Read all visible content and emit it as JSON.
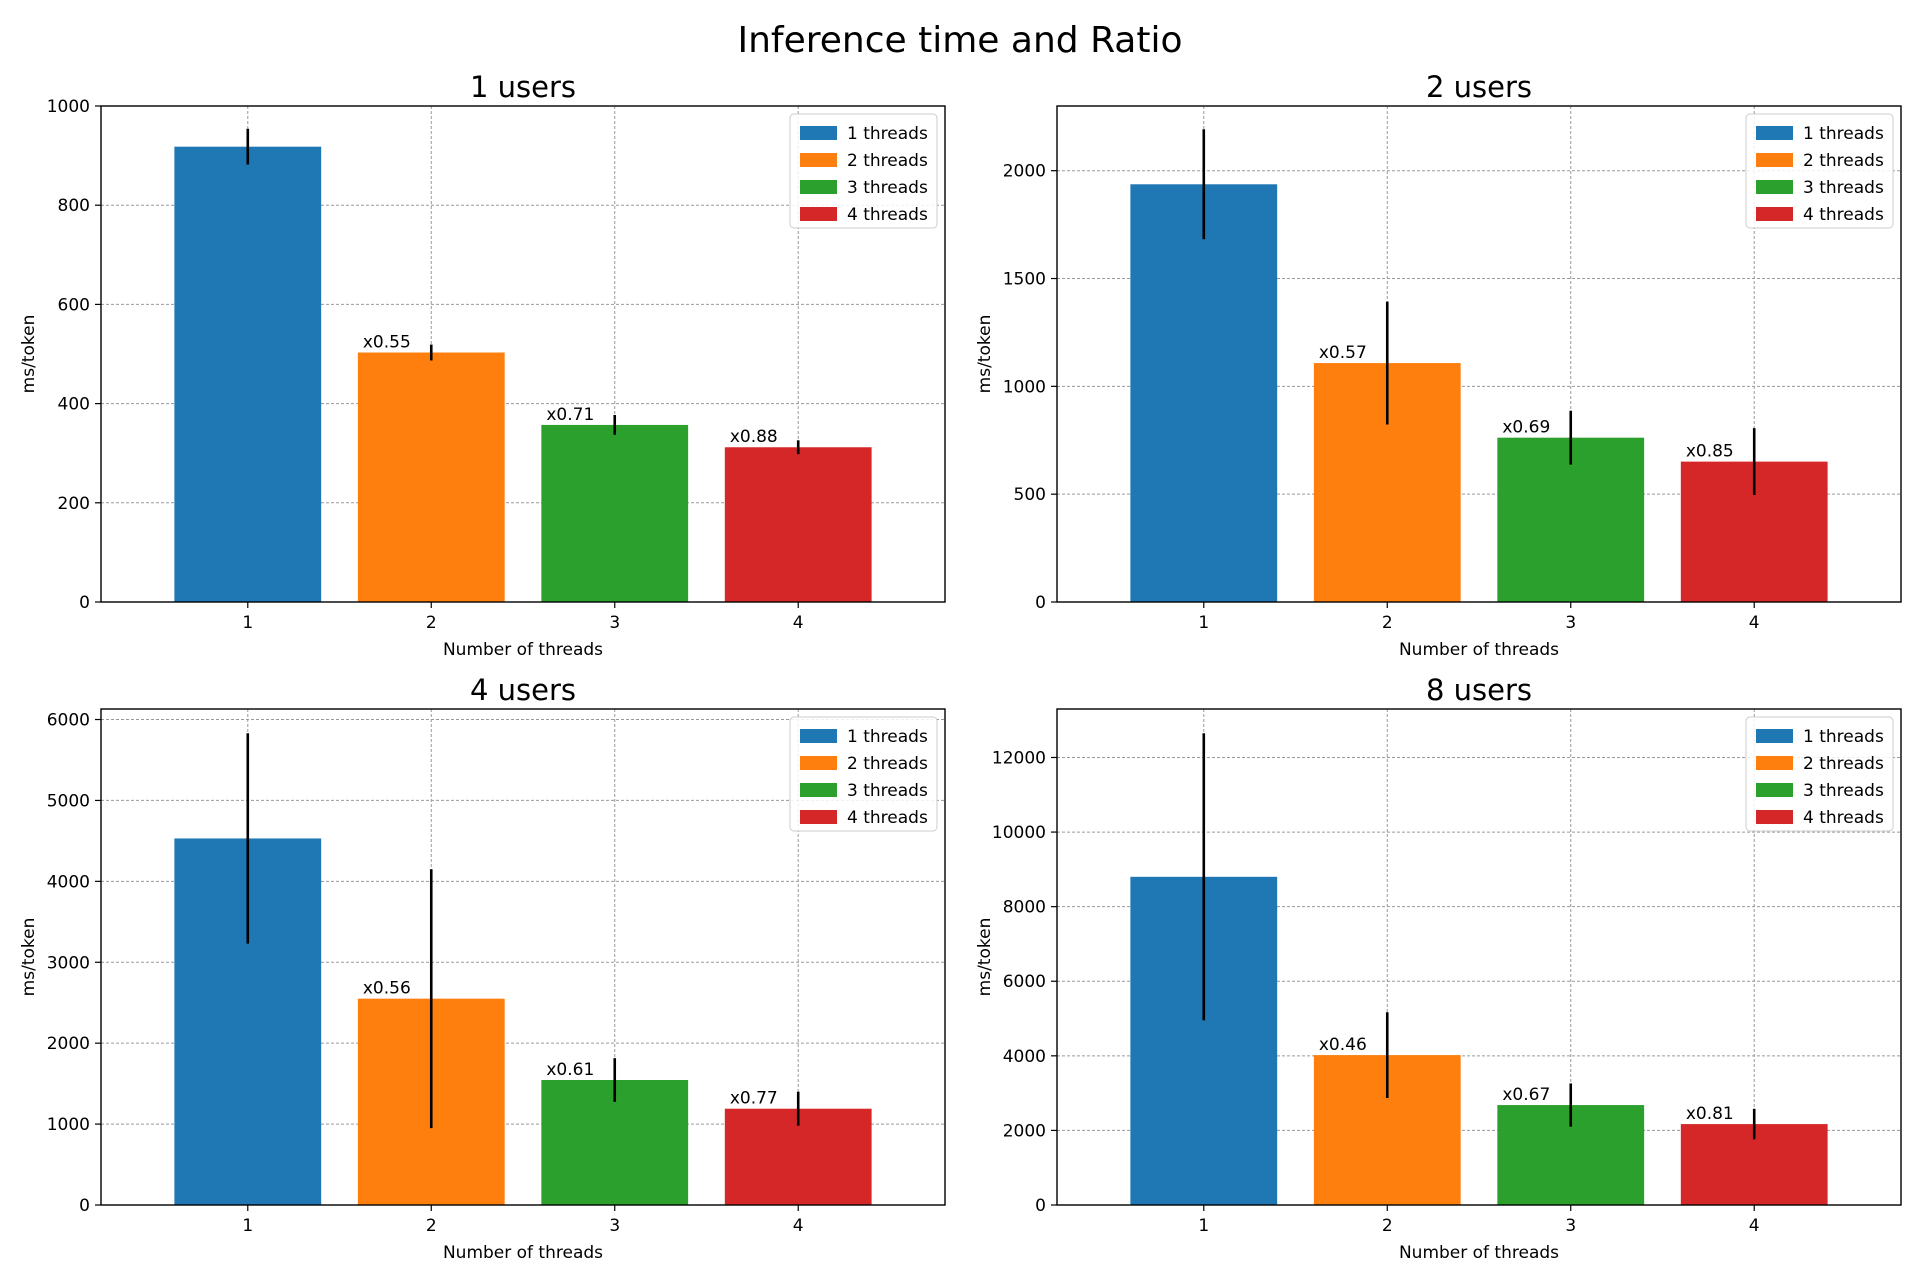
{
  "figure": {
    "title": "Inference time and Ratio",
    "colors": [
      "#1f77b4",
      "#ff7f0e",
      "#2ca02c",
      "#d62728"
    ]
  },
  "chart_data": [
    {
      "type": "bar",
      "title": "1 users",
      "xlabel": "Number of threads",
      "ylabel": "ms/token",
      "categories": [
        "1",
        "2",
        "3",
        "4"
      ],
      "values": [
        918,
        503,
        357,
        312
      ],
      "errors": [
        36,
        16,
        20,
        14
      ],
      "annotations": [
        "",
        "x0.55",
        "x0.71",
        "x0.88"
      ],
      "legend": [
        "1 threads",
        "2 threads",
        "3 threads",
        "4 threads"
      ],
      "legend_position": "top-right",
      "ylim": [
        0,
        1000
      ],
      "yticks": [
        0,
        200,
        400,
        600,
        800,
        1000
      ],
      "grid": true
    },
    {
      "type": "bar",
      "title": "2 users",
      "xlabel": "Number of threads",
      "ylabel": "ms/token",
      "categories": [
        "1",
        "2",
        "3",
        "4"
      ],
      "values": [
        1937,
        1108,
        762,
        651
      ],
      "errors": [
        255,
        285,
        125,
        155
      ],
      "annotations": [
        "",
        "x0.57",
        "x0.69",
        "x0.85"
      ],
      "legend": [
        "1 threads",
        "2 threads",
        "3 threads",
        "4 threads"
      ],
      "legend_position": "top-right",
      "ylim": [
        0,
        2300
      ],
      "yticks": [
        0,
        500,
        1000,
        1500,
        2000
      ],
      "grid": true
    },
    {
      "type": "bar",
      "title": "4 users",
      "xlabel": "Number of threads",
      "ylabel": "ms/token",
      "categories": [
        "1",
        "2",
        "3",
        "4"
      ],
      "values": [
        4530,
        2550,
        1545,
        1190
      ],
      "errors": [
        1300,
        1600,
        270,
        210
      ],
      "annotations": [
        "",
        "x0.56",
        "x0.61",
        "x0.77"
      ],
      "legend": [
        "1 threads",
        "2 threads",
        "3 threads",
        "4 threads"
      ],
      "legend_position": "top-right",
      "ylim": [
        0,
        6130
      ],
      "yticks": [
        0,
        1000,
        2000,
        3000,
        4000,
        5000,
        6000
      ],
      "grid": true
    },
    {
      "type": "bar",
      "title": "8 users",
      "xlabel": "Number of threads",
      "ylabel": "ms/token",
      "categories": [
        "1",
        "2",
        "3",
        "4"
      ],
      "values": [
        8800,
        4020,
        2680,
        2170
      ],
      "errors": [
        3850,
        1150,
        580,
        410
      ],
      "annotations": [
        "",
        "x0.46",
        "x0.67",
        "x0.81"
      ],
      "legend": [
        "1 threads",
        "2 threads",
        "3 threads",
        "4 threads"
      ],
      "legend_position": "top-right",
      "ylim": [
        0,
        13300
      ],
      "yticks": [
        0,
        2000,
        4000,
        6000,
        8000,
        10000,
        12000
      ],
      "grid": true
    }
  ]
}
